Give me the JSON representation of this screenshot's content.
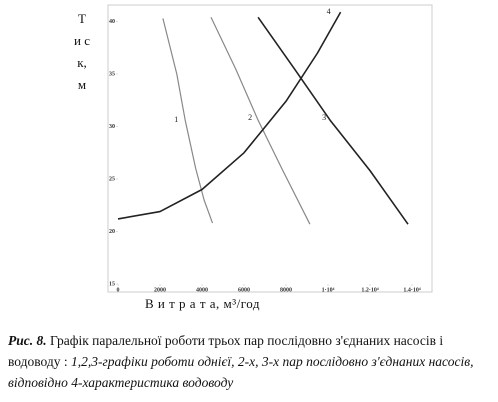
{
  "chart_data": {
    "type": "line",
    "y_label": "Т и с к, м",
    "x_label": "В и т р а т а, м³/год",
    "xlim": [
      0,
      15000
    ],
    "ylim": [
      15,
      41
    ],
    "xticks": [
      0,
      2000,
      4000,
      6000,
      8000,
      {
        "value": 10000,
        "label": "1·10⁴"
      },
      {
        "value": 12000,
        "label": "1.2·10⁴"
      },
      {
        "value": 14000,
        "label": "1.4·10⁴"
      }
    ],
    "yticks": [
      15,
      20,
      25,
      30,
      35,
      40
    ],
    "series": [
      {
        "name": "1",
        "color": "#888888",
        "x": [
          2140,
          2800,
          3200,
          3700,
          4100,
          4500
        ],
        "values": [
          40.3,
          35,
          30.6,
          26,
          23,
          20.8
        ]
      },
      {
        "name": "2",
        "color": "#888888",
        "x": [
          4430,
          5600,
          6670,
          7800,
          9140
        ],
        "values": [
          40.4,
          35.5,
          30.6,
          26,
          20.7
        ]
      },
      {
        "name": "3",
        "color": "#222222",
        "x": [
          6670,
          8400,
          10100,
          12000,
          13810
        ],
        "values": [
          40.4,
          35.5,
          30.6,
          25.8,
          20.7
        ]
      },
      {
        "name": "4",
        "color": "#222222",
        "x": [
          0,
          2000,
          4000,
          6000,
          8000,
          9500,
          10600
        ],
        "values": [
          21.2,
          21.9,
          24.0,
          27.5,
          32.4,
          37.0,
          40.9
        ]
      }
    ]
  },
  "caption": {
    "label": "Рис. 8.",
    "title": "Графік паралельної роботи трьох пар послідовно з'єднаних насосів і водоводу :",
    "text": "1,2,3-графіки роботи однієї, 2-х, 3-х пар послідовно з'єднаних насосів, відповідно 4-характеристика водоводу"
  }
}
